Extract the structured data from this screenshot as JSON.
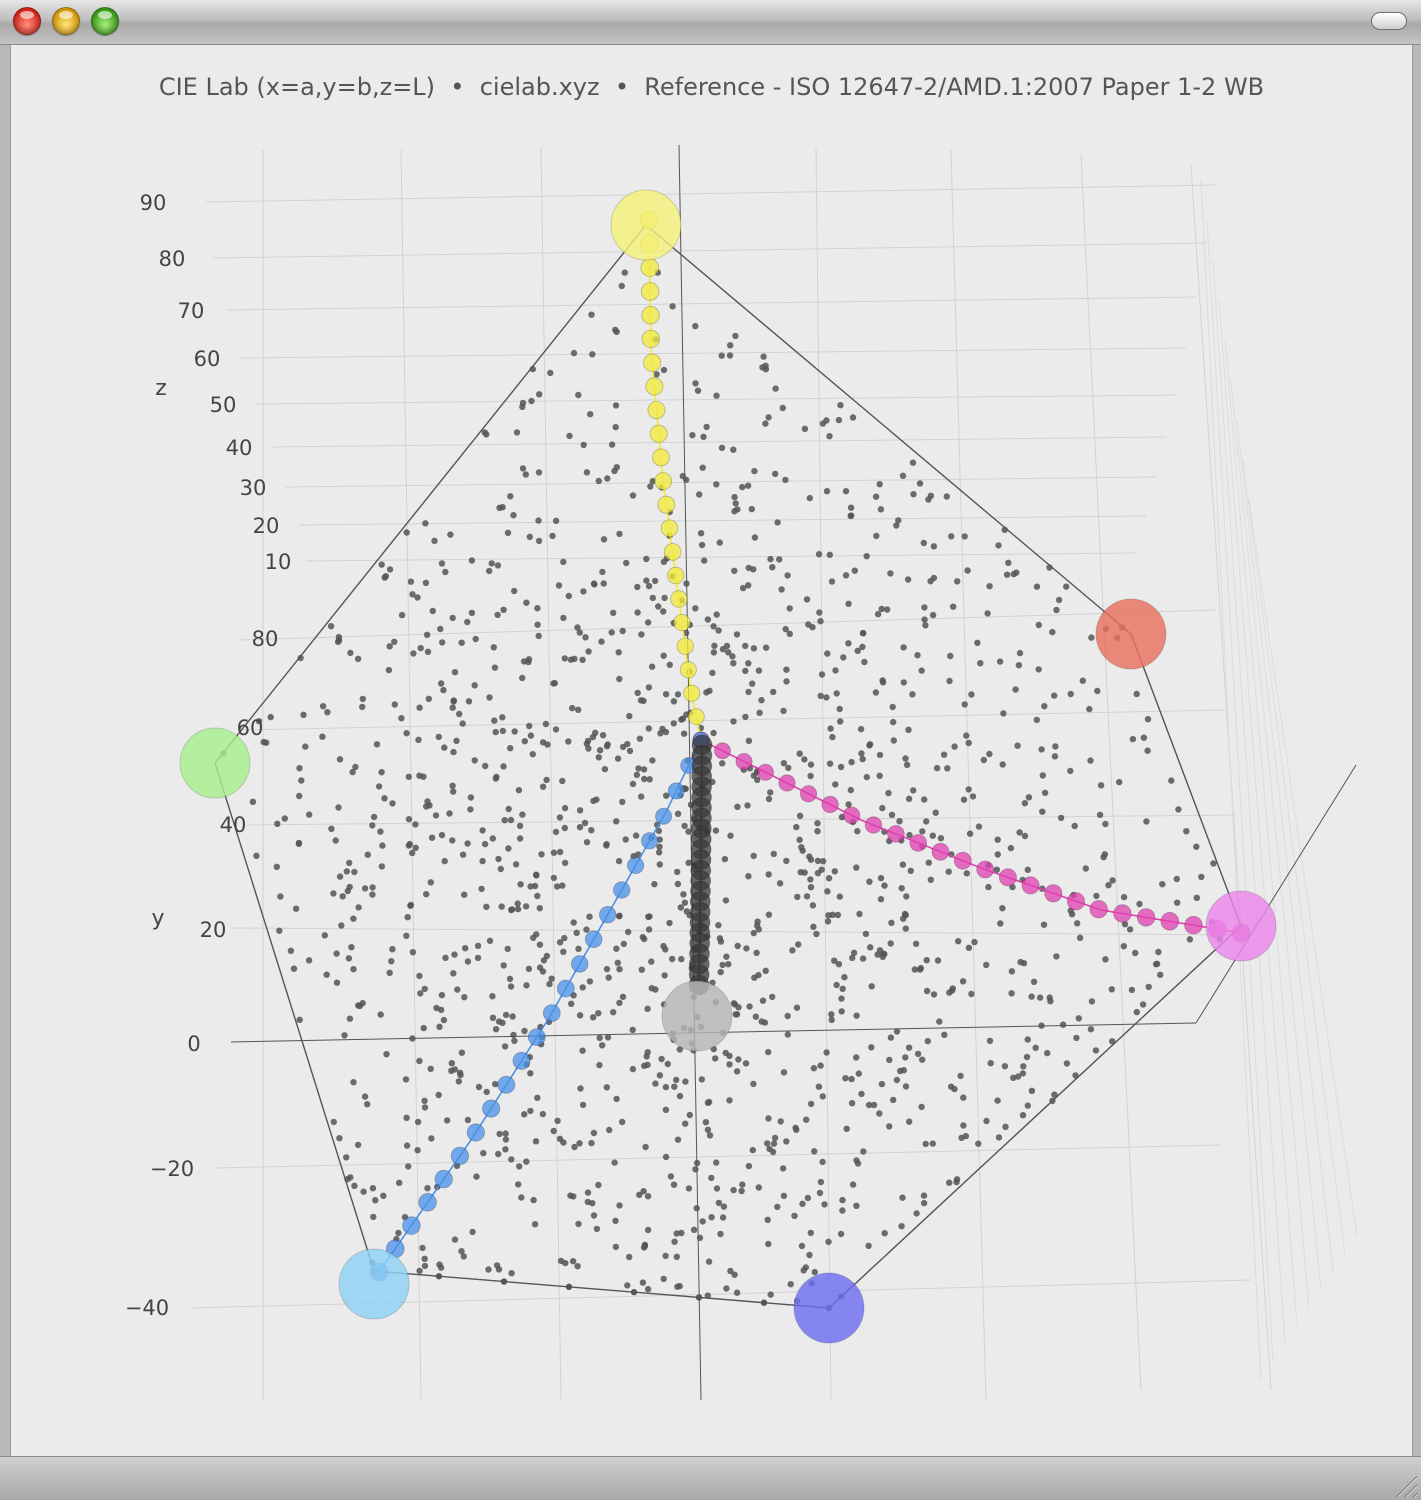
{
  "window": {
    "buttons": {
      "close": "close-icon",
      "minimize": "minimize-icon",
      "zoom": "zoom-icon"
    }
  },
  "plot": {
    "title": "CIE Lab (x=a,y=b,z=L)  •  cielab.xyz  •  Reference - ISO 12647-2/AMD.1:2007 Paper 1-2 WB"
  },
  "chart_data": {
    "type": "scatter",
    "projection": "3d",
    "title": "CIE Lab (x=a,y=b,z=L)  •  cielab.xyz  •  Reference - ISO 12647-2/AMD.1:2007 Paper 1-2 WB",
    "axes": {
      "y": {
        "label": "y",
        "ticks": [
          "80",
          "60",
          "40",
          "20",
          "0",
          "−20",
          "−40"
        ],
        "range": [
          -50,
          90
        ]
      },
      "z": {
        "label": "z",
        "ticks": [
          "90",
          "80",
          "70",
          "60",
          "50",
          "40",
          "30",
          "20",
          "10"
        ],
        "range": [
          0,
          95
        ]
      }
    },
    "grid": true,
    "scatter_count": 1400,
    "colors": {
      "scatter": "#555555",
      "yellow": "#f2e93a",
      "magenta": "#e040b0",
      "cyan": "#4a90e8",
      "black": "#3a3a3a",
      "red": "#e8705e",
      "green": "#a6ef8c",
      "blue": "#6e6ef0",
      "light_cyan": "#8fd0f5",
      "light_magenta": "#ea86ea",
      "paper": "#b6b6b6",
      "light_yellow": "#f4f07a"
    },
    "primaries": [
      {
        "name": "yellow",
        "L": 89,
        "a": -5,
        "b": 93
      },
      {
        "name": "red",
        "L": 48,
        "a": 68,
        "b": 48
      },
      {
        "name": "magenta",
        "L": 48,
        "a": 75,
        "b": -4
      },
      {
        "name": "blue",
        "L": 24,
        "a": 17,
        "b": -46
      },
      {
        "name": "cyan",
        "L": 55,
        "a": -37,
        "b": -50
      },
      {
        "name": "green",
        "L": 50,
        "a": -65,
        "b": 27
      },
      {
        "name": "paper",
        "L": 95,
        "a": 0,
        "b": -2
      }
    ],
    "ramps": {
      "yellow": 23,
      "magenta": 25,
      "cyan": 23,
      "black": 24
    }
  }
}
